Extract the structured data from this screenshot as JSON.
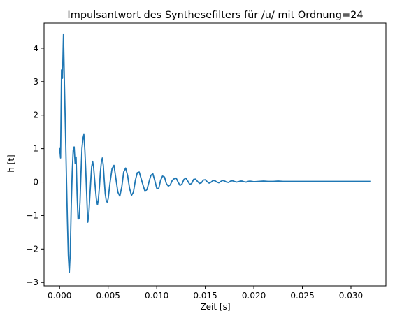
{
  "chart_data": {
    "type": "line",
    "title": "Impulsantwort des Synthesefilters für /u/ mit Ordnung=24",
    "xlabel": "Zeit [s]",
    "ylabel": "h [t]",
    "xlim": [
      -0.0016,
      0.0336
    ],
    "ylim": [
      -3.1,
      4.75
    ],
    "xticks": [
      0,
      0.005,
      0.01,
      0.015,
      0.02,
      0.025,
      0.03
    ],
    "xtick_labels": [
      "0.000",
      "0.005",
      "0.010",
      "0.015",
      "0.020",
      "0.025",
      "0.030"
    ],
    "yticks": [
      -3,
      -2,
      -1,
      0,
      1,
      2,
      3,
      4
    ],
    "ytick_labels": [
      "−3",
      "−2",
      "−1",
      "0",
      "1",
      "2",
      "3",
      "4"
    ],
    "grid": false,
    "legend": "none",
    "series": [
      {
        "color": "#1f77b4",
        "x": [
          0.0,
          0.0001,
          0.0002,
          0.0003,
          0.0004,
          0.0005,
          0.0006,
          0.0007,
          0.0008,
          0.0009,
          0.001,
          0.0011,
          0.0012,
          0.0013,
          0.0014,
          0.0015,
          0.0016,
          0.0017,
          0.0018,
          0.0019,
          0.002,
          0.0021,
          0.0022,
          0.0023,
          0.0024,
          0.0025,
          0.0026,
          0.0027,
          0.0028,
          0.0029,
          0.003,
          0.0031,
          0.0032,
          0.0033,
          0.0034,
          0.0035,
          0.0036,
          0.0037,
          0.0038,
          0.0039,
          0.004,
          0.0041,
          0.0042,
          0.0043,
          0.0044,
          0.0045,
          0.0046,
          0.0047,
          0.0048,
          0.0049,
          0.005,
          0.0052,
          0.0054,
          0.0056,
          0.0058,
          0.006,
          0.0062,
          0.0064,
          0.0066,
          0.0068,
          0.007,
          0.0072,
          0.0074,
          0.0076,
          0.0078,
          0.008,
          0.0082,
          0.0084,
          0.0086,
          0.0088,
          0.009,
          0.0092,
          0.0094,
          0.0096,
          0.0098,
          0.01,
          0.0102,
          0.0104,
          0.0106,
          0.0108,
          0.011,
          0.0112,
          0.0114,
          0.0116,
          0.0118,
          0.012,
          0.0122,
          0.0124,
          0.0126,
          0.0128,
          0.013,
          0.0132,
          0.0134,
          0.0136,
          0.0138,
          0.014,
          0.0142,
          0.0144,
          0.0146,
          0.0148,
          0.015,
          0.0152,
          0.0154,
          0.0156,
          0.0158,
          0.016,
          0.0162,
          0.0164,
          0.0166,
          0.0168,
          0.017,
          0.0172,
          0.0174,
          0.0176,
          0.0178,
          0.018,
          0.0182,
          0.0184,
          0.0186,
          0.0188,
          0.019,
          0.0192,
          0.0194,
          0.0196,
          0.0198,
          0.02,
          0.0205,
          0.021,
          0.0215,
          0.022,
          0.0225,
          0.023,
          0.024,
          0.025,
          0.026,
          0.027,
          0.028,
          0.029,
          0.03,
          0.031,
          0.032
        ],
        "y": [
          1.02,
          0.72,
          3.35,
          3.1,
          4.42,
          2.9,
          1.6,
          0.2,
          -1.1,
          -2.2,
          -2.7,
          -2.1,
          -0.7,
          0.3,
          0.95,
          1.05,
          0.55,
          0.75,
          -0.35,
          -1.1,
          -1.1,
          -0.6,
          0.25,
          1.0,
          1.3,
          1.42,
          0.95,
          0.3,
          -0.45,
          -1.2,
          -1.0,
          -0.5,
          0.0,
          0.45,
          0.62,
          0.45,
          0.1,
          -0.25,
          -0.55,
          -0.68,
          -0.5,
          -0.15,
          0.3,
          0.6,
          0.72,
          0.5,
          0.05,
          -0.35,
          -0.55,
          -0.6,
          -0.5,
          0.0,
          0.4,
          0.5,
          0.1,
          -0.3,
          -0.42,
          -0.15,
          0.3,
          0.42,
          0.2,
          -0.18,
          -0.4,
          -0.3,
          0.05,
          0.28,
          0.3,
          0.1,
          -0.1,
          -0.28,
          -0.22,
          0.0,
          0.2,
          0.25,
          0.05,
          -0.18,
          -0.2,
          0.05,
          0.18,
          0.15,
          -0.05,
          -0.12,
          -0.08,
          0.05,
          0.1,
          0.12,
          0.0,
          -0.1,
          -0.06,
          0.08,
          0.12,
          0.03,
          -0.07,
          -0.04,
          0.08,
          0.09,
          0.02,
          -0.04,
          -0.02,
          0.06,
          0.07,
          0.01,
          -0.03,
          0.0,
          0.05,
          0.04,
          0.0,
          -0.02,
          0.02,
          0.05,
          0.03,
          0.0,
          -0.01,
          0.03,
          0.04,
          0.02,
          0.0,
          0.01,
          0.03,
          0.03,
          0.01,
          0.0,
          0.02,
          0.03,
          0.02,
          0.01,
          0.02,
          0.03,
          0.02,
          0.02,
          0.03,
          0.02,
          0.02,
          0.02,
          0.02,
          0.02,
          0.02,
          0.02,
          0.02,
          0.02,
          0.02
        ]
      }
    ]
  }
}
